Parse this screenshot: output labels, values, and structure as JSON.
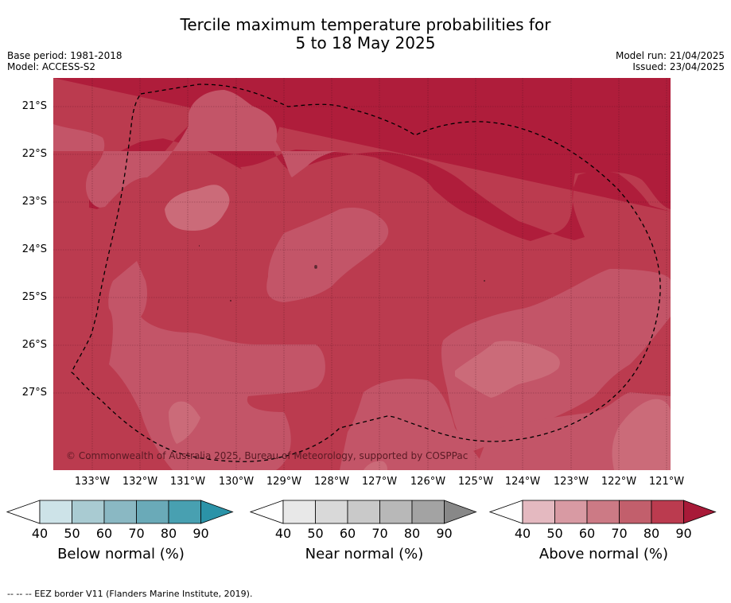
{
  "header": {
    "title_line1": "Tercile maximum temperature probabilities for",
    "title_line2": "5 to 18 May 2025",
    "base_period": "Base period: 1981-2018",
    "model": "Model: ACCESS-S2",
    "model_run": "Model run: 21/04/2025",
    "issued": "Issued: 23/04/2025"
  },
  "map": {
    "copyright": "© Commonwealth of Australia 2025, Bureau of Meteorology, supported by COSPPac",
    "lat_labels": [
      "21°S",
      "22°S",
      "23°S",
      "24°S",
      "25°S",
      "26°S",
      "27°S"
    ],
    "lon_labels": [
      "133°W",
      "132°W",
      "131°W",
      "130°W",
      "129°W",
      "128°W",
      "127°W",
      "126°W",
      "125°W",
      "124°W",
      "123°W",
      "122°W",
      "121°W"
    ]
  },
  "colorbars": [
    {
      "title": "Below normal (%)",
      "ticks": [
        "40",
        "50",
        "60",
        "70",
        "80",
        "90"
      ],
      "colors": [
        "#ffffff",
        "#cde3e8",
        "#a9cbd2",
        "#8ab8c3",
        "#6aaab8",
        "#48a0b1",
        "#2b93a8"
      ]
    },
    {
      "title": "Near normal (%)",
      "ticks": [
        "40",
        "50",
        "60",
        "70",
        "80",
        "90"
      ],
      "colors": [
        "#ffffff",
        "#e8e8e8",
        "#d9d9d9",
        "#c9c9c9",
        "#b8b8b8",
        "#a3a3a3",
        "#888888"
      ]
    },
    {
      "title": "Above normal (%)",
      "ticks": [
        "40",
        "50",
        "60",
        "70",
        "80",
        "90"
      ],
      "colors": [
        "#ffffff",
        "#e4b9c0",
        "#d89aa3",
        "#cc7a85",
        "#c25f6c",
        "#bb3b4f",
        "#a81a38"
      ]
    }
  ],
  "footnote": "--  --  -- EEZ border V11 (Flanders Marine Institute, 2019)."
}
